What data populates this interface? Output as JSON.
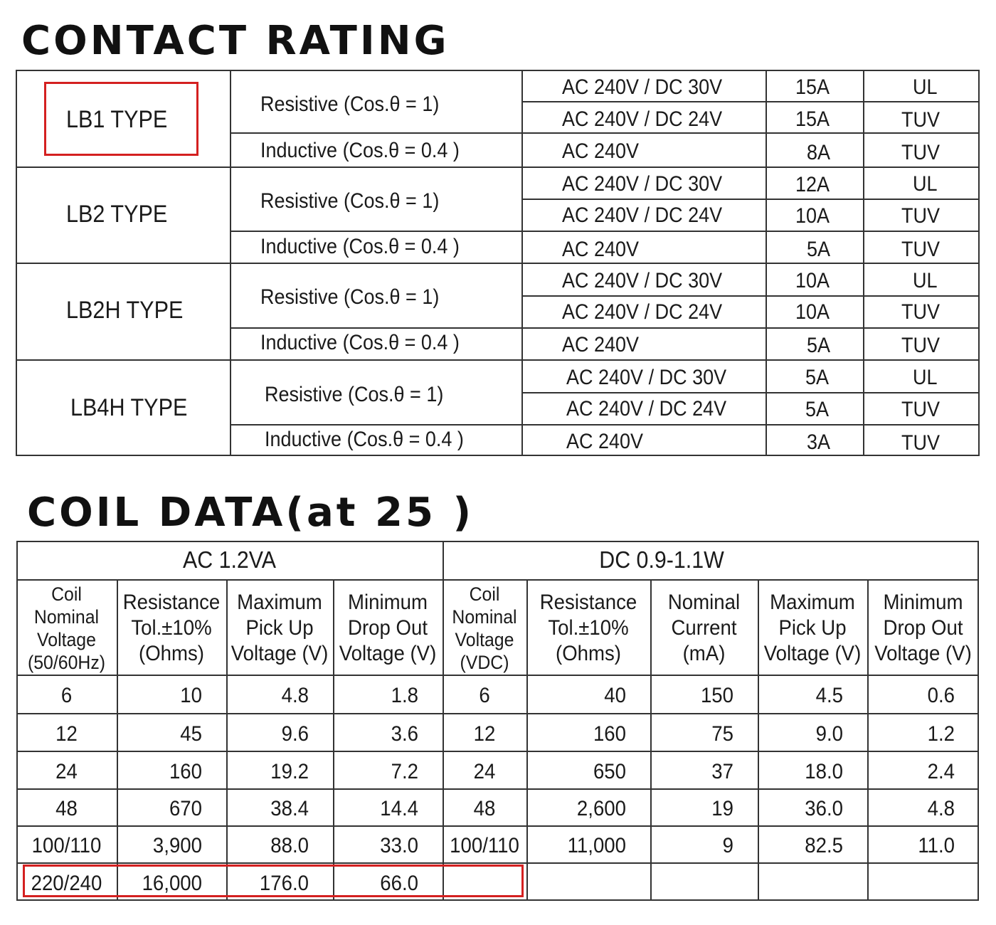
{
  "contact_rating": {
    "title": "CONTACT RATING",
    "groups": [
      {
        "type": "LB1 TYPE",
        "resistive_label": "Resistive (Cos.θ = 1)",
        "inductive_label": "Inductive (Cos.θ = 0.4 )",
        "rows": [
          {
            "voltage": "AC 240V / DC 30V",
            "current": "15A",
            "cert": "UL"
          },
          {
            "voltage": "AC 240V / DC 24V",
            "current": "15A",
            "cert": "TUV"
          },
          {
            "voltage": "AC 240V",
            "current": "8A",
            "cert": "TUV"
          }
        ]
      },
      {
        "type": "LB2 TYPE",
        "resistive_label": "Resistive (Cos.θ = 1)",
        "inductive_label": "Inductive (Cos.θ = 0.4 )",
        "rows": [
          {
            "voltage": "AC 240V / DC 30V",
            "current": "12A",
            "cert": "UL"
          },
          {
            "voltage": "AC 240V / DC 24V",
            "current": "10A",
            "cert": "TUV"
          },
          {
            "voltage": "AC 240V",
            "current": "5A",
            "cert": "TUV"
          }
        ]
      },
      {
        "type": "LB2H TYPE",
        "resistive_label": "Resistive (Cos.θ = 1)",
        "inductive_label": "Inductive (Cos.θ = 0.4 )",
        "rows": [
          {
            "voltage": "AC 240V / DC 30V",
            "current": "10A",
            "cert": "UL"
          },
          {
            "voltage": "AC 240V / DC 24V",
            "current": "10A",
            "cert": "TUV"
          },
          {
            "voltage": "AC 240V",
            "current": "5A",
            "cert": "TUV"
          }
        ]
      },
      {
        "type": "LB4H TYPE",
        "resistive_label": "Resistive (Cos.θ = 1)",
        "inductive_label": "Inductive (Cos.θ = 0.4 )",
        "rows": [
          {
            "voltage": "AC 240V / DC 30V",
            "current": "5A",
            "cert": "UL"
          },
          {
            "voltage": "AC 240V / DC 24V",
            "current": "5A",
            "cert": "TUV"
          },
          {
            "voltage": "AC 240V",
            "current": "3A",
            "cert": "TUV"
          }
        ]
      }
    ]
  },
  "coil_data": {
    "title": "COIL DATA(at 25 )",
    "ac_header": "AC  1.2VA",
    "dc_header": "DC  0.9-1.1W",
    "ac_columns": [
      [
        "Coil",
        "Nominal",
        "Voltage",
        "(50/60Hz)"
      ],
      [
        "Resistance",
        "Tol.±10%",
        "(Ohms)"
      ],
      [
        "Maximum",
        "Pick Up",
        "Voltage (V)"
      ],
      [
        "Minimum",
        "Drop Out",
        "Voltage (V)"
      ]
    ],
    "dc_columns": [
      [
        "Coil",
        "Nominal",
        "Voltage",
        "(VDC)"
      ],
      [
        "Resistance",
        "Tol.±10%",
        "(Ohms)"
      ],
      [
        "Nominal",
        "Current",
        "(mA)"
      ],
      [
        "Maximum",
        "Pick Up",
        "Voltage (V)"
      ],
      [
        "Minimum",
        "Drop Out",
        "Voltage (V)"
      ]
    ],
    "ac_rows": [
      [
        "6",
        "10",
        "4.8",
        "1.8"
      ],
      [
        "12",
        "45",
        "9.6",
        "3.6"
      ],
      [
        "24",
        "160",
        "19.2",
        "7.2"
      ],
      [
        "48",
        "670",
        "38.4",
        "14.4"
      ],
      [
        "100/110",
        "3,900",
        "88.0",
        "33.0"
      ],
      [
        "220/240",
        "16,000",
        "176.0",
        "66.0"
      ]
    ],
    "dc_rows": [
      [
        "6",
        "40",
        "150",
        "4.5",
        "0.6"
      ],
      [
        "12",
        "160",
        "75",
        "9.0",
        "1.2"
      ],
      [
        "24",
        "650",
        "37",
        "18.0",
        "2.4"
      ],
      [
        "48",
        "2,600",
        "19",
        "36.0",
        "4.8"
      ],
      [
        "100/110",
        "11,000",
        "9",
        "82.5",
        "11.0"
      ],
      [
        "",
        "",
        "",
        "",
        ""
      ]
    ],
    "highlight_color": "#d42020"
  }
}
